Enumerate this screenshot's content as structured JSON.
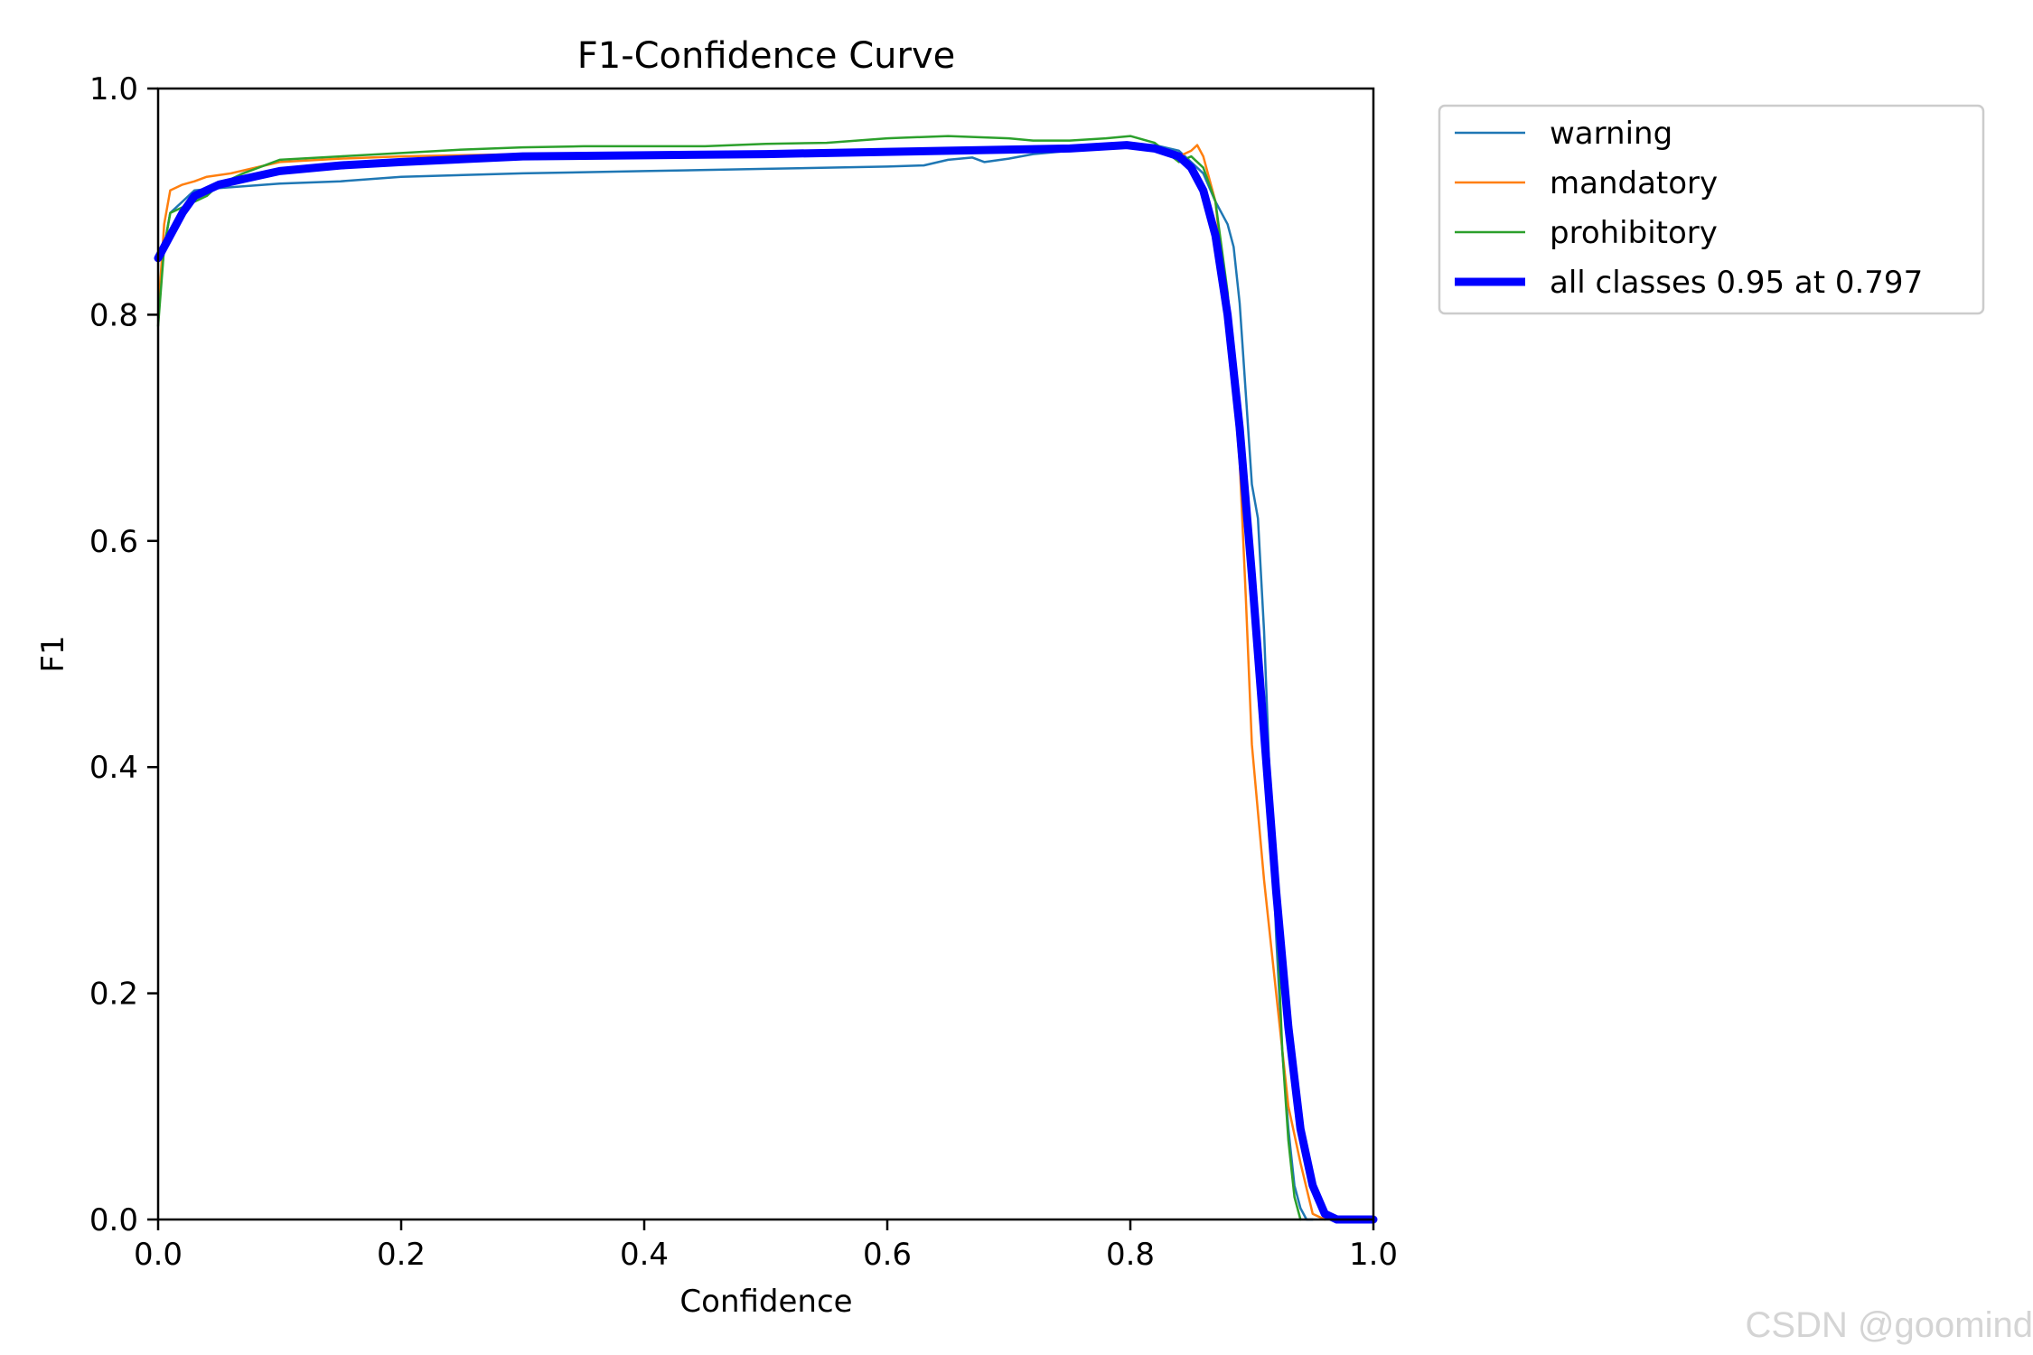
{
  "watermark": "CSDN @goomind",
  "chart_data": {
    "type": "line",
    "title": "F1-Confidence Curve",
    "xlabel": "Confidence",
    "ylabel": "F1",
    "xlim": [
      0,
      1
    ],
    "ylim": [
      0,
      1
    ],
    "xticks": [
      0.0,
      0.2,
      0.4,
      0.6,
      0.8,
      1.0
    ],
    "yticks": [
      0.0,
      0.2,
      0.4,
      0.6,
      0.8,
      1.0
    ],
    "xtick_labels": [
      "0.0",
      "0.2",
      "0.4",
      "0.6",
      "0.8",
      "1.0"
    ],
    "ytick_labels": [
      "0.0",
      "0.2",
      "0.4",
      "0.6",
      "0.8",
      "1.0"
    ],
    "grid": false,
    "legend_position": "outside-top-right",
    "series": [
      {
        "name": "warning",
        "color": "#1f77b4",
        "width": "thin",
        "x": [
          0.0,
          0.005,
          0.01,
          0.02,
          0.03,
          0.05,
          0.1,
          0.15,
          0.2,
          0.3,
          0.4,
          0.5,
          0.6,
          0.63,
          0.65,
          0.67,
          0.68,
          0.7,
          0.72,
          0.75,
          0.78,
          0.8,
          0.82,
          0.84,
          0.85,
          0.86,
          0.87,
          0.88,
          0.885,
          0.89,
          0.895,
          0.9,
          0.905,
          0.91,
          0.915,
          0.92,
          0.925,
          0.93,
          0.935,
          0.94,
          0.945,
          0.95
        ],
        "y": [
          0.8,
          0.86,
          0.89,
          0.9,
          0.91,
          0.912,
          0.916,
          0.918,
          0.922,
          0.925,
          0.927,
          0.929,
          0.931,
          0.932,
          0.937,
          0.939,
          0.935,
          0.938,
          0.942,
          0.945,
          0.948,
          0.95,
          0.95,
          0.945,
          0.935,
          0.925,
          0.9,
          0.88,
          0.86,
          0.81,
          0.73,
          0.65,
          0.62,
          0.52,
          0.38,
          0.25,
          0.15,
          0.08,
          0.03,
          0.01,
          0.0,
          0.0
        ]
      },
      {
        "name": "mandatory",
        "color": "#ff7f0e",
        "width": "thin",
        "x": [
          0.0,
          0.005,
          0.01,
          0.02,
          0.03,
          0.04,
          0.06,
          0.08,
          0.1,
          0.15,
          0.2,
          0.3,
          0.4,
          0.5,
          0.6,
          0.7,
          0.8,
          0.82,
          0.84,
          0.85,
          0.855,
          0.86,
          0.87,
          0.88,
          0.89,
          0.895,
          0.9,
          0.91,
          0.92,
          0.93,
          0.94,
          0.95,
          0.96
        ],
        "y": [
          0.8,
          0.88,
          0.91,
          0.915,
          0.918,
          0.922,
          0.925,
          0.93,
          0.935,
          0.938,
          0.94,
          0.942,
          0.943,
          0.943,
          0.943,
          0.944,
          0.948,
          0.948,
          0.94,
          0.945,
          0.95,
          0.94,
          0.9,
          0.8,
          0.67,
          0.55,
          0.42,
          0.3,
          0.2,
          0.1,
          0.05,
          0.005,
          0.0
        ]
      },
      {
        "name": "prohibitory",
        "color": "#2ca02c",
        "width": "thin",
        "x": [
          0.0,
          0.005,
          0.01,
          0.02,
          0.03,
          0.04,
          0.05,
          0.07,
          0.1,
          0.15,
          0.2,
          0.25,
          0.3,
          0.35,
          0.4,
          0.45,
          0.5,
          0.55,
          0.6,
          0.65,
          0.7,
          0.72,
          0.75,
          0.78,
          0.8,
          0.82,
          0.84,
          0.85,
          0.86,
          0.87,
          0.88,
          0.89,
          0.9,
          0.91,
          0.915,
          0.92,
          0.925,
          0.93,
          0.935,
          0.94
        ],
        "y": [
          0.79,
          0.86,
          0.89,
          0.895,
          0.9,
          0.905,
          0.915,
          0.925,
          0.937,
          0.94,
          0.943,
          0.946,
          0.948,
          0.949,
          0.949,
          0.949,
          0.951,
          0.952,
          0.956,
          0.958,
          0.956,
          0.954,
          0.954,
          0.956,
          0.958,
          0.952,
          0.935,
          0.94,
          0.93,
          0.9,
          0.82,
          0.7,
          0.55,
          0.45,
          0.38,
          0.28,
          0.15,
          0.07,
          0.02,
          0.0
        ]
      },
      {
        "name": "all classes 0.95 at 0.797",
        "color": "#0000ff",
        "width": "thick",
        "x": [
          0.0,
          0.01,
          0.02,
          0.03,
          0.05,
          0.07,
          0.1,
          0.15,
          0.2,
          0.3,
          0.4,
          0.5,
          0.6,
          0.7,
          0.75,
          0.797,
          0.82,
          0.84,
          0.85,
          0.86,
          0.87,
          0.88,
          0.89,
          0.9,
          0.91,
          0.92,
          0.93,
          0.94,
          0.95,
          0.96,
          0.97,
          1.0
        ],
        "y": [
          0.85,
          0.87,
          0.89,
          0.905,
          0.915,
          0.92,
          0.927,
          0.932,
          0.935,
          0.94,
          0.941,
          0.942,
          0.944,
          0.946,
          0.947,
          0.95,
          0.947,
          0.94,
          0.93,
          0.91,
          0.87,
          0.8,
          0.7,
          0.57,
          0.43,
          0.29,
          0.17,
          0.08,
          0.03,
          0.005,
          0.0,
          0.0
        ]
      }
    ]
  }
}
